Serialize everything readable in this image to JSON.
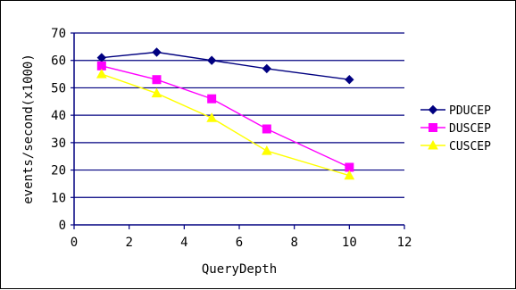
{
  "chart_data": {
    "type": "line",
    "xlabel": "QueryDepth",
    "ylabel": "events/second(x1000)",
    "xlim": [
      0,
      12
    ],
    "ylim": [
      0,
      70
    ],
    "xticks": [
      0,
      2,
      4,
      6,
      8,
      10,
      12
    ],
    "yticks": [
      0,
      10,
      20,
      30,
      40,
      50,
      60,
      70
    ],
    "grid": "horizontal",
    "legend_position": "right",
    "series": [
      {
        "name": "PDUCEP",
        "color": "#000080",
        "marker": "diamond",
        "x": [
          1,
          3,
          5,
          7,
          10
        ],
        "values": [
          61,
          63,
          60,
          57,
          53
        ]
      },
      {
        "name": "DUSCEP",
        "color": "#ff00ff",
        "marker": "square",
        "x": [
          1,
          3,
          5,
          7,
          10
        ],
        "values": [
          58,
          53,
          46,
          35,
          21
        ]
      },
      {
        "name": "CUSCEP",
        "color": "#ffff00",
        "marker": "triangle",
        "x": [
          1,
          3,
          5,
          7,
          10
        ],
        "values": [
          55,
          48,
          39,
          27,
          18
        ]
      }
    ]
  }
}
